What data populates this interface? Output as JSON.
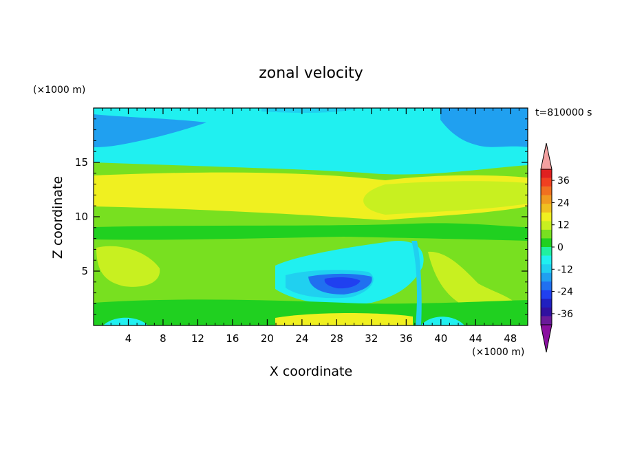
{
  "chart_data": {
    "type": "heatmap",
    "title": "zonal velocity",
    "xlabel": "X coordinate",
    "ylabel": "Z coordinate",
    "x_unit": "(×1000 m)",
    "y_unit": "(×1000 m)",
    "time_label": "t=810000 s",
    "xlim": [
      0,
      50
    ],
    "ylim": [
      0,
      20
    ],
    "x_ticks": [
      4,
      8,
      12,
      16,
      20,
      24,
      28,
      32,
      36,
      40,
      44,
      48
    ],
    "y_ticks": [
      5,
      10,
      15
    ],
    "colorbar": {
      "levels": [
        -42,
        -36,
        -30,
        -24,
        -18,
        -12,
        -6,
        0,
        6,
        12,
        18,
        24,
        30,
        36,
        42
      ],
      "tick_labels": [
        "36",
        "24",
        "12",
        "0",
        "-12",
        "-24",
        "-36"
      ],
      "tick_values": [
        36,
        24,
        12,
        0,
        -12,
        -24,
        -36
      ],
      "colors": [
        "#f2a0a0",
        "#e02020",
        "#f04020",
        "#f07020",
        "#f09a20",
        "#f0c020",
        "#f0f020",
        "#c8f020",
        "#78e020",
        "#20d020",
        "#20f0a0",
        "#20f0f0",
        "#20d0f0",
        "#20a0f0",
        "#2070f0",
        "#2040f0",
        "#2020c0",
        "#3010a0",
        "#6a1a9a",
        "#8a10a0"
      ]
    },
    "features": [
      {
        "region": "upper layer z=16-20",
        "value": -8
      },
      {
        "region": "jet z=11-13",
        "value": 14
      },
      {
        "region": "lower-middle z=2-9",
        "value": 4
      },
      {
        "region": "vortex near x=29, z=4",
        "value": -24
      },
      {
        "region": "surface near x=32, z=0.5",
        "value": 14
      }
    ]
  }
}
